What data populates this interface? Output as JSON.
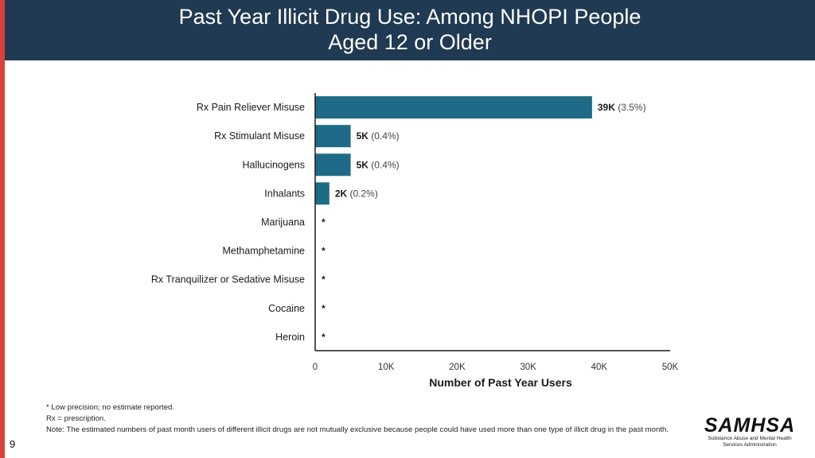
{
  "page": {
    "title_line1": "Past Year Illicit Drug Use: Among NHOPI People",
    "title_line2": "Aged 12 or Older",
    "slide_number": "9"
  },
  "colors": {
    "bar": "#1f6b87",
    "header": "#1f3a52",
    "accent": "#d9413b"
  },
  "chart_data": {
    "type": "bar",
    "orientation": "horizontal",
    "categories": [
      "Rx Pain Reliever Misuse",
      "Rx Stimulant Misuse",
      "Hallucinogens",
      "Inhalants",
      "Marijuana",
      "Methamphetamine",
      "Rx Tranquilizer or Sedative Misuse",
      "Cocaine",
      "Heroin"
    ],
    "values": [
      39000,
      5000,
      5000,
      2000,
      null,
      null,
      null,
      null,
      null
    ],
    "value_labels": [
      "39K",
      "5K",
      "5K",
      "2K",
      "*",
      "*",
      "*",
      "*",
      "*"
    ],
    "percent_labels": [
      "(3.5%)",
      "(0.4%)",
      "(0.4%)",
      "(0.2%)",
      "",
      "",
      "",
      "",
      ""
    ],
    "xlim": [
      0,
      50000
    ],
    "xticks": [
      0,
      10000,
      20000,
      30000,
      40000,
      50000
    ],
    "xtick_labels": [
      "0",
      "10K",
      "20K",
      "30K",
      "40K",
      "50K"
    ],
    "xlabel": "Number of Past Year Users",
    "ylabel": "",
    "grid": false,
    "legend": "none"
  },
  "footnotes": {
    "low_precision": "* Low precision; no estimate reported.",
    "rx": "Rx = prescription.",
    "note": "Note: The estimated numbers of past month users of different illicit drugs are not mutually exclusive because people could have used more than one type of illicit drug in the past month."
  },
  "logo": {
    "wordmark": "SAMHSA",
    "subtitle_line1": "Substance Abuse and Mental Health",
    "subtitle_line2": "Services Administration"
  }
}
